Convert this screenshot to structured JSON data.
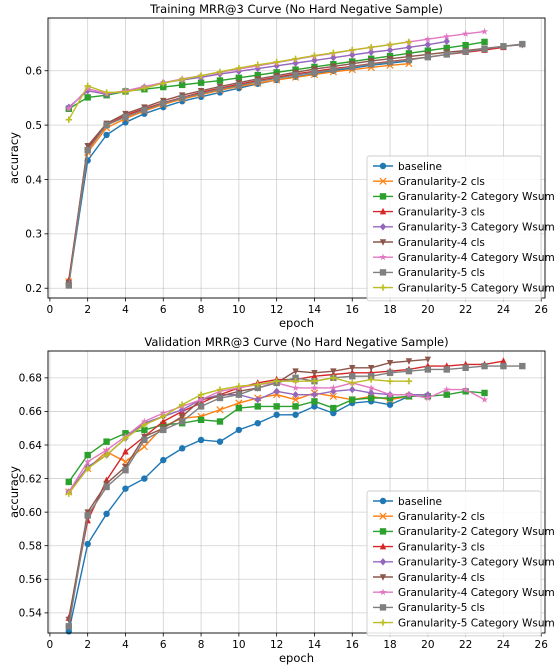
{
  "colors": {
    "baseline": "#1f77b4",
    "gran2_cls": "#ff7f0e",
    "gran2_wsum": "#2ca02c",
    "gran3_cls": "#d62728",
    "gran3_wsum": "#9467bd",
    "gran4_cls": "#8c564b",
    "gran4_wsum": "#e377c2",
    "gran5_cls": "#7f7f7f",
    "gran5_wsum": "#bcbd22"
  },
  "chart_data": [
    {
      "type": "line",
      "title": "Training MRR@3 Curve (No Hard Negative Sample)",
      "xlabel": "epoch",
      "ylabel": "accuracy",
      "xlim": [
        -0.1,
        26.2
      ],
      "ylim": [
        0.182,
        0.697
      ],
      "xticks": [
        0,
        2,
        4,
        6,
        8,
        10,
        12,
        14,
        16,
        18,
        20,
        22,
        24,
        26
      ],
      "yticks": [
        0.2,
        0.3,
        0.4,
        0.5,
        0.6
      ],
      "ytick_labels": [
        "0.2",
        "0.3",
        "0.4",
        "0.5",
        "0.6"
      ],
      "grid": true,
      "legend_position": "lower-right",
      "series": [
        {
          "name": "baseline",
          "marker": "circle",
          "color_key": "baseline",
          "x": [
            1,
            2,
            3,
            4,
            5,
            6,
            7,
            8,
            9,
            10,
            11,
            12,
            13,
            14,
            15,
            16,
            17,
            18,
            19
          ],
          "y": [
            0.209,
            0.435,
            0.482,
            0.505,
            0.521,
            0.533,
            0.544,
            0.552,
            0.56,
            0.568,
            0.576,
            0.583,
            0.589,
            0.594,
            0.6,
            0.605,
            0.61,
            0.614,
            0.618
          ]
        },
        {
          "name": "Granularity-2 cls",
          "marker": "x",
          "color_key": "gran2_cls",
          "x": [
            1,
            2,
            3,
            4,
            5,
            6,
            7,
            8,
            9,
            10,
            11,
            12,
            13,
            14,
            15,
            16,
            17,
            18,
            19
          ],
          "y": [
            0.212,
            0.45,
            0.495,
            0.512,
            0.526,
            0.538,
            0.548,
            0.556,
            0.564,
            0.571,
            0.577,
            0.583,
            0.588,
            0.593,
            0.598,
            0.602,
            0.606,
            0.61,
            0.613
          ]
        },
        {
          "name": "Granularity-2 Category Wsum",
          "marker": "square",
          "color_key": "gran2_wsum",
          "x": [
            1,
            2,
            3,
            4,
            5,
            6,
            7,
            8,
            9,
            10,
            11,
            12,
            13,
            14,
            15,
            16,
            17,
            18,
            19,
            20,
            21,
            22,
            23
          ],
          "y": [
            0.53,
            0.551,
            0.555,
            0.562,
            0.566,
            0.57,
            0.574,
            0.578,
            0.582,
            0.587,
            0.592,
            0.597,
            0.602,
            0.607,
            0.612,
            0.617,
            0.622,
            0.627,
            0.632,
            0.637,
            0.642,
            0.647,
            0.653
          ]
        },
        {
          "name": "Granularity-3 cls",
          "marker": "triangle",
          "color_key": "gran3_cls",
          "x": [
            1,
            2,
            3,
            4,
            5,
            6,
            7,
            8,
            9,
            10,
            11,
            12,
            13,
            14,
            15,
            16,
            17,
            18,
            19,
            20,
            21,
            22,
            23,
            24
          ],
          "y": [
            0.215,
            0.458,
            0.5,
            0.518,
            0.53,
            0.541,
            0.551,
            0.56,
            0.568,
            0.575,
            0.582,
            0.588,
            0.594,
            0.599,
            0.604,
            0.608,
            0.613,
            0.617,
            0.621,
            0.625,
            0.63,
            0.634,
            0.638,
            0.643
          ]
        },
        {
          "name": "Granularity-3 Category Wsum",
          "marker": "diamond",
          "color_key": "gran3_wsum",
          "x": [
            1,
            2,
            3,
            4,
            5,
            6,
            7,
            8,
            9,
            10,
            11,
            12,
            13,
            14,
            15,
            16,
            17,
            18,
            19,
            20,
            21
          ],
          "y": [
            0.533,
            0.563,
            0.557,
            0.563,
            0.57,
            0.578,
            0.583,
            0.588,
            0.594,
            0.599,
            0.604,
            0.609,
            0.614,
            0.619,
            0.624,
            0.629,
            0.634,
            0.638,
            0.643,
            0.648,
            0.654
          ]
        },
        {
          "name": "Granularity-4 cls",
          "marker": "triangle-down",
          "color_key": "gran4_cls",
          "x": [
            1,
            2,
            3,
            4,
            5,
            6,
            7,
            8,
            9,
            10,
            11,
            12,
            13,
            14,
            15,
            16,
            17,
            18,
            19,
            20,
            21,
            22,
            23,
            24,
            25
          ],
          "y": [
            0.21,
            0.462,
            0.503,
            0.521,
            0.533,
            0.545,
            0.555,
            0.563,
            0.571,
            0.578,
            0.585,
            0.591,
            0.597,
            0.603,
            0.608,
            0.613,
            0.618,
            0.622,
            0.626,
            0.63,
            0.634,
            0.637,
            0.641,
            0.645,
            0.648
          ]
        },
        {
          "name": "Granularity-4 Category Wsum",
          "marker": "star",
          "color_key": "gran4_wsum",
          "x": [
            1,
            2,
            3,
            4,
            5,
            6,
            7,
            8,
            9,
            10,
            11,
            12,
            13,
            14,
            15,
            16,
            17,
            18,
            19,
            20,
            21,
            22,
            23
          ],
          "y": [
            0.53,
            0.567,
            0.558,
            0.563,
            0.571,
            0.578,
            0.585,
            0.591,
            0.597,
            0.603,
            0.609,
            0.615,
            0.621,
            0.627,
            0.632,
            0.638,
            0.643,
            0.648,
            0.653,
            0.658,
            0.663,
            0.668,
            0.672
          ]
        },
        {
          "name": "Granularity-5 cls",
          "marker": "square",
          "color_key": "gran5_cls",
          "x": [
            1,
            2,
            3,
            4,
            5,
            6,
            7,
            8,
            9,
            10,
            11,
            12,
            13,
            14,
            15,
            16,
            17,
            18,
            19,
            20,
            21,
            22,
            23,
            24,
            25
          ],
          "y": [
            0.205,
            0.454,
            0.5,
            0.515,
            0.528,
            0.54,
            0.55,
            0.558,
            0.566,
            0.573,
            0.58,
            0.586,
            0.592,
            0.597,
            0.602,
            0.607,
            0.612,
            0.616,
            0.62,
            0.625,
            0.63,
            0.635,
            0.64,
            0.645,
            0.649
          ]
        },
        {
          "name": "Granularity-5 Category Wsum",
          "marker": "plus",
          "color_key": "gran5_wsum",
          "x": [
            1,
            2,
            3,
            4,
            5,
            6,
            7,
            8,
            9,
            10,
            11,
            12,
            13,
            14,
            15,
            16,
            17,
            18,
            19
          ],
          "y": [
            0.51,
            0.572,
            0.56,
            0.561,
            0.568,
            0.577,
            0.584,
            0.591,
            0.598,
            0.605,
            0.611,
            0.616,
            0.622,
            0.628,
            0.633,
            0.638,
            0.643,
            0.648,
            0.653
          ]
        }
      ]
    },
    {
      "type": "line",
      "title": "Validation MRR@3 Curve (No Hard Negative Sample)",
      "xlabel": "epoch",
      "ylabel": "accuracy",
      "xlim": [
        -0.1,
        26.2
      ],
      "ylim": [
        0.528,
        0.696
      ],
      "xticks": [
        0,
        2,
        4,
        6,
        8,
        10,
        12,
        14,
        16,
        18,
        20,
        22,
        24,
        26
      ],
      "yticks": [
        0.54,
        0.56,
        0.58,
        0.6,
        0.62,
        0.64,
        0.66,
        0.68
      ],
      "ytick_labels": [
        "0.54",
        "0.56",
        "0.58",
        "0.60",
        "0.62",
        "0.64",
        "0.66",
        "0.68"
      ],
      "grid": true,
      "legend_position": "lower-right",
      "series": [
        {
          "name": "baseline",
          "marker": "circle",
          "color_key": "baseline",
          "x": [
            1,
            2,
            3,
            4,
            5,
            6,
            7,
            8,
            9,
            10,
            11,
            12,
            13,
            14,
            15,
            16,
            17,
            18,
            19
          ],
          "y": [
            0.529,
            0.581,
            0.599,
            0.614,
            0.62,
            0.631,
            0.638,
            0.643,
            0.642,
            0.649,
            0.653,
            0.658,
            0.658,
            0.663,
            0.659,
            0.665,
            0.666,
            0.664,
            0.669
          ]
        },
        {
          "name": "Granularity-2 cls",
          "marker": "x",
          "color_key": "gran2_cls",
          "x": [
            1,
            2,
            3,
            4,
            5,
            6,
            7,
            8,
            9,
            10,
            11,
            12,
            13,
            14,
            15,
            16,
            17,
            18,
            19
          ],
          "y": [
            0.612,
            0.626,
            0.636,
            0.63,
            0.639,
            0.651,
            0.656,
            0.657,
            0.661,
            0.665,
            0.668,
            0.67,
            0.667,
            0.671,
            0.669,
            0.667,
            0.669,
            0.667,
            0.669
          ]
        },
        {
          "name": "Granularity-2 Category Wsum",
          "marker": "square",
          "color_key": "gran2_wsum",
          "x": [
            1,
            2,
            3,
            4,
            5,
            6,
            7,
            8,
            9,
            10,
            11,
            12,
            13,
            14,
            15,
            16,
            17,
            18,
            19,
            20,
            21,
            22,
            23
          ],
          "y": [
            0.618,
            0.634,
            0.642,
            0.647,
            0.649,
            0.652,
            0.653,
            0.655,
            0.654,
            0.662,
            0.663,
            0.663,
            0.663,
            0.666,
            0.662,
            0.667,
            0.668,
            0.668,
            0.669,
            0.669,
            0.67,
            0.672,
            0.671
          ]
        },
        {
          "name": "Granularity-3 cls",
          "marker": "triangle",
          "color_key": "gran3_cls",
          "x": [
            1,
            2,
            3,
            4,
            5,
            6,
            7,
            8,
            9,
            10,
            11,
            12,
            13,
            14,
            15,
            16,
            17,
            18,
            19,
            20,
            21,
            22,
            23,
            24
          ],
          "y": [
            0.537,
            0.595,
            0.619,
            0.636,
            0.645,
            0.654,
            0.66,
            0.665,
            0.67,
            0.674,
            0.677,
            0.679,
            0.679,
            0.681,
            0.682,
            0.683,
            0.683,
            0.684,
            0.685,
            0.687,
            0.687,
            0.688,
            0.688,
            0.69
          ]
        },
        {
          "name": "Granularity-3 Category Wsum",
          "marker": "diamond",
          "color_key": "gran3_wsum",
          "x": [
            1,
            2,
            3,
            4,
            5,
            6,
            7,
            8,
            9,
            10,
            11,
            12,
            13,
            14,
            15,
            16,
            17,
            18,
            19,
            20
          ],
          "y": [
            0.612,
            0.627,
            0.634,
            0.644,
            0.653,
            0.657,
            0.661,
            0.667,
            0.67,
            0.67,
            0.667,
            0.672,
            0.67,
            0.67,
            0.672,
            0.673,
            0.671,
            0.67,
            0.67,
            0.67
          ]
        },
        {
          "name": "Granularity-4 cls",
          "marker": "triangle-down",
          "color_key": "gran4_cls",
          "x": [
            1,
            2,
            3,
            4,
            5,
            6,
            7,
            8,
            9,
            10,
            11,
            12,
            13,
            14,
            15,
            16,
            17,
            18,
            19,
            20
          ],
          "y": [
            0.536,
            0.6,
            0.617,
            0.627,
            0.645,
            0.65,
            0.657,
            0.667,
            0.669,
            0.672,
            0.674,
            0.677,
            0.684,
            0.683,
            0.684,
            0.686,
            0.686,
            0.689,
            0.69,
            0.691
          ]
        },
        {
          "name": "Granularity-4 Category Wsum",
          "marker": "star",
          "color_key": "gran4_wsum",
          "x": [
            1,
            2,
            3,
            4,
            5,
            6,
            7,
            8,
            9,
            10,
            11,
            12,
            13,
            14,
            15,
            16,
            17,
            18,
            19,
            20,
            21,
            22,
            23
          ],
          "y": [
            0.612,
            0.63,
            0.637,
            0.645,
            0.654,
            0.659,
            0.663,
            0.667,
            0.672,
            0.674,
            0.676,
            0.677,
            0.674,
            0.674,
            0.674,
            0.677,
            0.674,
            0.67,
            0.67,
            0.668,
            0.673,
            0.673,
            0.667
          ]
        },
        {
          "name": "Granularity-5 cls",
          "marker": "square",
          "color_key": "gran5_cls",
          "x": [
            1,
            2,
            3,
            4,
            5,
            6,
            7,
            8,
            9,
            10,
            11,
            12,
            13,
            14,
            15,
            16,
            17,
            18,
            19,
            20,
            21,
            22,
            23,
            24,
            25
          ],
          "y": [
            0.532,
            0.598,
            0.615,
            0.625,
            0.643,
            0.649,
            0.654,
            0.663,
            0.668,
            0.67,
            0.674,
            0.677,
            0.68,
            0.678,
            0.68,
            0.681,
            0.681,
            0.683,
            0.684,
            0.685,
            0.685,
            0.686,
            0.687,
            0.687,
            0.687
          ]
        },
        {
          "name": "Granularity-5 Category Wsum",
          "marker": "plus",
          "color_key": "gran5_wsum",
          "x": [
            1,
            2,
            3,
            4,
            5,
            6,
            7,
            8,
            9,
            10,
            11,
            12,
            13,
            14,
            15,
            16,
            17,
            18,
            19
          ],
          "y": [
            0.611,
            0.626,
            0.634,
            0.644,
            0.652,
            0.657,
            0.664,
            0.67,
            0.673,
            0.675,
            0.676,
            0.678,
            0.678,
            0.678,
            0.68,
            0.677,
            0.679,
            0.678,
            0.678
          ]
        }
      ]
    }
  ]
}
